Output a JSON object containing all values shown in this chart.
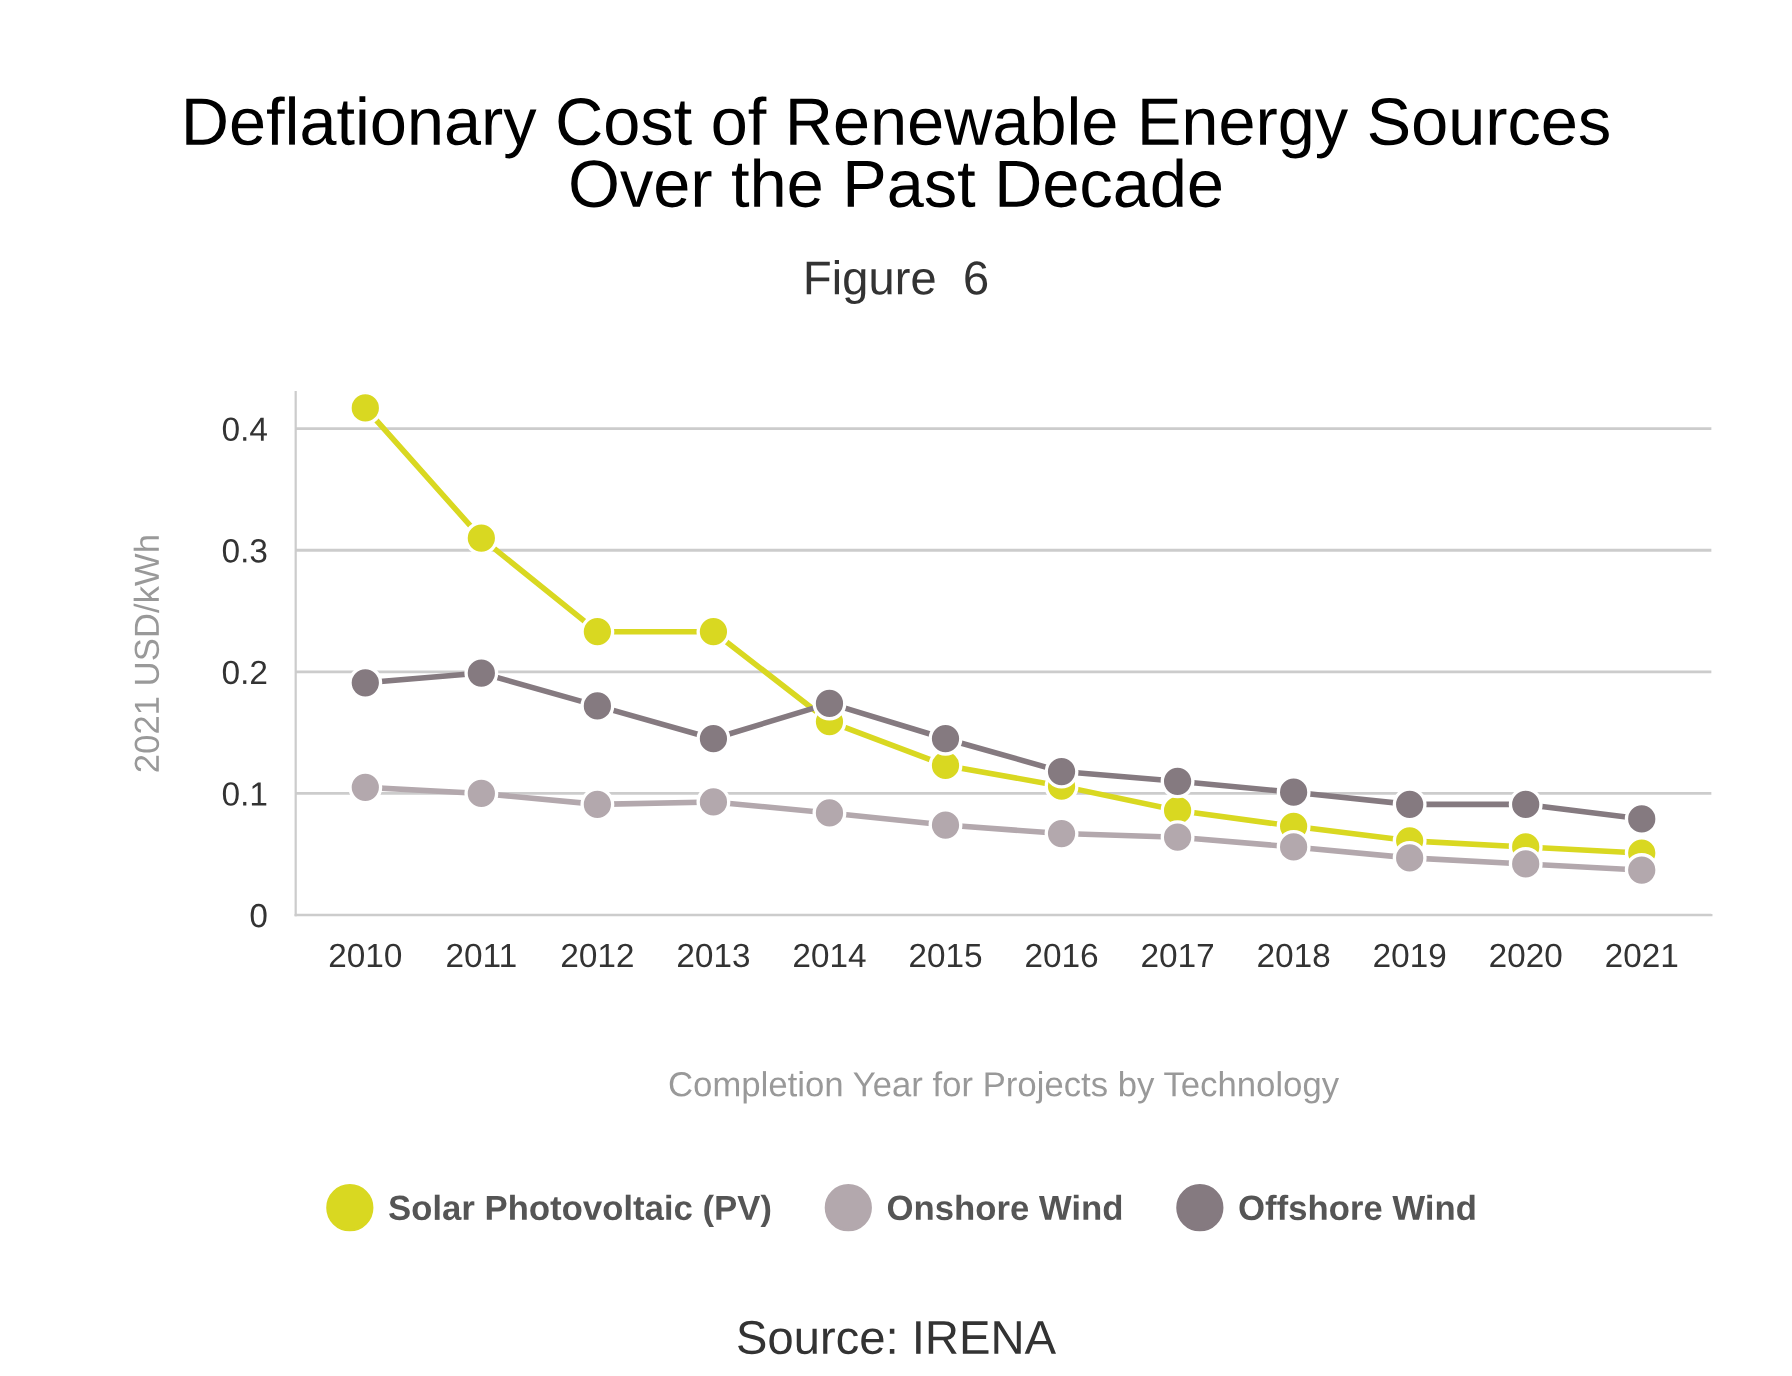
{
  "chart_data": {
    "type": "line",
    "title": "Deflationary Cost of Renewable Energy Sources\nOver the Past Decade",
    "subtitle": "Figure  6",
    "xlabel": "Completion Year for Projects by Technology",
    "ylabel": "2021 USD/kWh",
    "categories": [
      "2010",
      "2011",
      "2012",
      "2013",
      "2014",
      "2015",
      "2016",
      "2017",
      "2018",
      "2019",
      "2020",
      "2021"
    ],
    "series": [
      {
        "name": "Solar Photovoltaic (PV)",
        "color": "#d9d821",
        "values": [
          0.417,
          0.31,
          0.233,
          0.233,
          0.159,
          0.123,
          0.106,
          0.086,
          0.073,
          0.061,
          0.056,
          0.051
        ]
      },
      {
        "name": "Onshore Wind",
        "color": "#b3a8ad",
        "values": [
          0.105,
          0.1,
          0.091,
          0.093,
          0.084,
          0.074,
          0.067,
          0.064,
          0.056,
          0.047,
          0.042,
          0.037
        ]
      },
      {
        "name": "Offshore Wind",
        "color": "#857a80",
        "values": [
          0.191,
          0.199,
          0.172,
          0.145,
          0.174,
          0.145,
          0.118,
          0.11,
          0.101,
          0.091,
          0.091,
          0.079
        ]
      }
    ],
    "ylim": [
      0,
      0.43
    ],
    "yticks": [
      0,
      0.1,
      0.2,
      0.3,
      0.4
    ],
    "grid": "y",
    "legend": "bottom",
    "marker": "circle",
    "line_style": "solid",
    "annotations": [
      "Source: IRENA"
    ]
  }
}
